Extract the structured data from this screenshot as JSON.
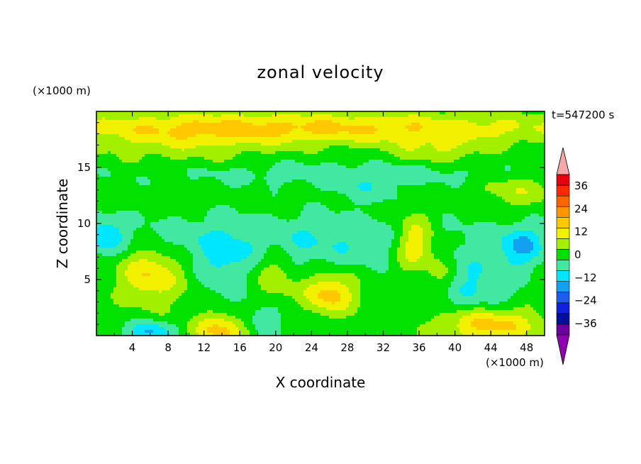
{
  "chart_data": {
    "type": "heatmap",
    "title": "zonal velocity",
    "xlabel": "X coordinate",
    "ylabel": "Z coordinate",
    "x_unit_label": "(×1000 m)",
    "y_unit_label": "(×1000 m)",
    "time_label": "t=547200 s",
    "xlim": [
      0,
      50
    ],
    "ylim": [
      0,
      20
    ],
    "x_ticks": [
      4,
      8,
      12,
      16,
      20,
      24,
      28,
      32,
      36,
      40,
      44,
      48
    ],
    "y_ticks": [
      5,
      10,
      15
    ],
    "colorbar": {
      "labels": [
        "36",
        "24",
        "12",
        "0",
        "−12",
        "−24",
        "−36"
      ],
      "label_values": [
        36,
        24,
        12,
        0,
        -12,
        -24,
        -36
      ],
      "levels": [
        -42,
        -36,
        -30,
        -24,
        -18,
        -12,
        -6,
        0,
        6,
        12,
        18,
        24,
        30,
        36,
        42
      ],
      "colors": [
        "#6a009e",
        "#000fa0",
        "#1020e0",
        "#1e5cf0",
        "#14a0f0",
        "#00e6ff",
        "#40e8a0",
        "#00e100",
        "#a2f000",
        "#f0f000",
        "#ffc800",
        "#ff9600",
        "#ff6400",
        "#ff2800",
        "#e8000e"
      ],
      "under_color": "#9000b0",
      "over_color": "#f4a8a8"
    },
    "features": [
      {
        "x": 25,
        "y": 18.5,
        "sx": 30,
        "sy": 1.4,
        "v": 16
      },
      {
        "x": 10,
        "y": 17.2,
        "sx": 10,
        "sy": 2.5,
        "v": 6
      },
      {
        "x": 25,
        "y": 14.5,
        "sx": 25,
        "sy": 1.2,
        "v": -6
      },
      {
        "x": 22,
        "y": 8.5,
        "sx": 22,
        "sy": 2.4,
        "v": -9
      },
      {
        "x": 14,
        "y": 6,
        "sx": 2.5,
        "sy": 3,
        "v": -8
      },
      {
        "x": 6,
        "y": 5.5,
        "sx": 3.5,
        "sy": 2.5,
        "v": 16
      },
      {
        "x": 26,
        "y": 3.7,
        "sx": 2.8,
        "sy": 1.7,
        "v": 18
      },
      {
        "x": 14,
        "y": 0.5,
        "sx": 3,
        "sy": 1.5,
        "v": 18
      },
      {
        "x": 44,
        "y": 1,
        "sx": 5.5,
        "sy": 1.5,
        "v": 18
      },
      {
        "x": 35.5,
        "y": 8.3,
        "sx": 2.3,
        "sy": 2.4,
        "v": 18
      },
      {
        "x": 38.5,
        "y": 5.5,
        "sx": 2,
        "sy": 2.2,
        "v": 8
      },
      {
        "x": 20,
        "y": 5.5,
        "sx": 2,
        "sy": 3,
        "v": 8
      },
      {
        "x": 47.5,
        "y": 8,
        "sx": 2.5,
        "sy": 1.8,
        "v": -14
      },
      {
        "x": 1,
        "y": 9,
        "sx": 2,
        "sy": 1.5,
        "v": -12
      },
      {
        "x": 6,
        "y": 0.3,
        "sx": 2.5,
        "sy": 1,
        "v": -16
      },
      {
        "x": 18.5,
        "y": 1.5,
        "sx": 3,
        "sy": 1.8,
        "v": -8
      },
      {
        "x": 42,
        "y": 4.5,
        "sx": 5,
        "sy": 2.5,
        "v": -10
      },
      {
        "x": 47,
        "y": 13,
        "sx": 4,
        "sy": 1.5,
        "v": 8
      },
      {
        "x": 38,
        "y": 16.5,
        "sx": 5,
        "sy": 1.2,
        "v": 8
      },
      {
        "x": 30,
        "y": 13,
        "sx": 4,
        "sy": 1.2,
        "v": -6
      }
    ],
    "background_value": 3,
    "grid": false
  }
}
